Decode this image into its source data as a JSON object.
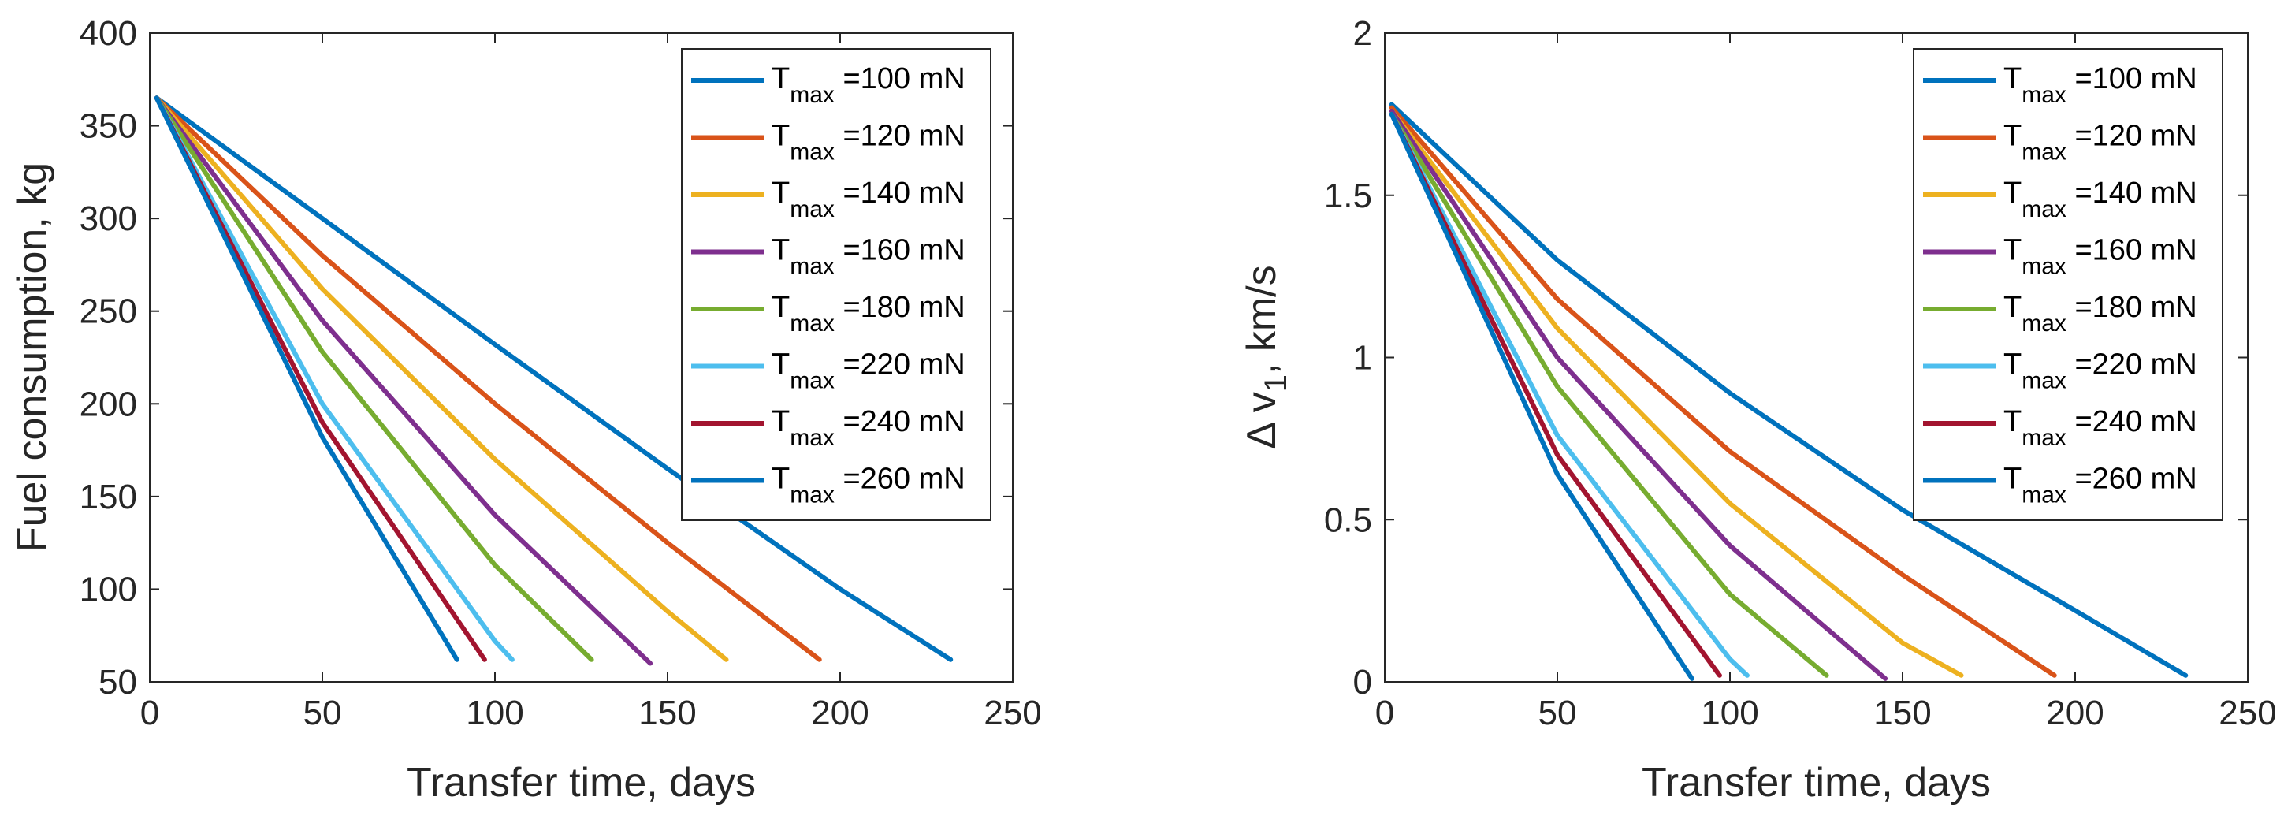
{
  "chart_data": [
    {
      "type": "line",
      "xlabel": "Transfer time, days",
      "ylabel": "Fuel consumption, kg",
      "ylabel_parts": [],
      "xlim": [
        0,
        250
      ],
      "ylim": [
        50,
        400
      ],
      "xticks": [
        0,
        50,
        100,
        150,
        200,
        250
      ],
      "yticks": [
        50,
        100,
        150,
        200,
        250,
        300,
        350,
        400
      ],
      "legend_position": "top-right",
      "grid": false,
      "series": [
        {
          "name_main": "T",
          "name_sub": "max",
          "name_rest": " =100 mN",
          "color": "#0072BD",
          "x": [
            2,
            50,
            100,
            150,
            200,
            232
          ],
          "y": [
            365,
            300,
            232,
            165,
            100,
            62
          ]
        },
        {
          "name_main": "T",
          "name_sub": "max",
          "name_rest": " =120 mN",
          "color": "#D95319",
          "x": [
            2,
            50,
            100,
            150,
            194
          ],
          "y": [
            365,
            280,
            200,
            125,
            62
          ]
        },
        {
          "name_main": "T",
          "name_sub": "max",
          "name_rest": " =140 mN",
          "color": "#EDB120",
          "x": [
            2,
            50,
            100,
            150,
            167
          ],
          "y": [
            365,
            262,
            170,
            88,
            62
          ]
        },
        {
          "name_main": "T",
          "name_sub": "max",
          "name_rest": " =160 mN",
          "color": "#7E2F8E",
          "x": [
            2,
            50,
            100,
            145
          ],
          "y": [
            365,
            245,
            140,
            60
          ]
        },
        {
          "name_main": "T",
          "name_sub": "max",
          "name_rest": " =180 mN",
          "color": "#77AC30",
          "x": [
            2,
            50,
            100,
            128
          ],
          "y": [
            365,
            228,
            113,
            62
          ]
        },
        {
          "name_main": "T",
          "name_sub": "max",
          "name_rest": " =220 mN",
          "color": "#4DBEEE",
          "x": [
            2,
            50,
            100,
            105
          ],
          "y": [
            365,
            200,
            72,
            62
          ]
        },
        {
          "name_main": "T",
          "name_sub": "max",
          "name_rest": " =240 mN",
          "color": "#A2142F",
          "x": [
            2,
            50,
            97
          ],
          "y": [
            365,
            190,
            62
          ]
        },
        {
          "name_main": "T",
          "name_sub": "max",
          "name_rest": " =260 mN",
          "color": "#0072BD",
          "x": [
            2,
            50,
            89
          ],
          "y": [
            365,
            182,
            62
          ]
        }
      ]
    },
    {
      "type": "line",
      "xlabel": "Transfer time, days",
      "ylabel": "",
      "ylabel_parts": [
        "Δ v",
        "1",
        ", km/s"
      ],
      "xlim": [
        0,
        250
      ],
      "ylim": [
        0,
        2
      ],
      "xticks": [
        0,
        50,
        100,
        150,
        200,
        250
      ],
      "yticks": [
        0,
        0.5,
        1,
        1.5,
        2
      ],
      "legend_position": "top-right",
      "grid": false,
      "series": [
        {
          "name_main": "T",
          "name_sub": "max",
          "name_rest": " =100 mN",
          "color": "#0072BD",
          "x": [
            2,
            50,
            100,
            150,
            200,
            232
          ],
          "y": [
            1.78,
            1.3,
            0.89,
            0.53,
            0.22,
            0.02
          ]
        },
        {
          "name_main": "T",
          "name_sub": "max",
          "name_rest": " =120 mN",
          "color": "#D95319",
          "x": [
            2,
            50,
            100,
            150,
            194
          ],
          "y": [
            1.77,
            1.18,
            0.71,
            0.33,
            0.02
          ]
        },
        {
          "name_main": "T",
          "name_sub": "max",
          "name_rest": " =140 mN",
          "color": "#EDB120",
          "x": [
            2,
            50,
            100,
            150,
            167
          ],
          "y": [
            1.76,
            1.09,
            0.55,
            0.12,
            0.02
          ]
        },
        {
          "name_main": "T",
          "name_sub": "max",
          "name_rest": " =160 mN",
          "color": "#7E2F8E",
          "x": [
            2,
            50,
            100,
            145
          ],
          "y": [
            1.76,
            1.0,
            0.42,
            0.01
          ]
        },
        {
          "name_main": "T",
          "name_sub": "max",
          "name_rest": " =180 mN",
          "color": "#77AC30",
          "x": [
            2,
            50,
            100,
            128
          ],
          "y": [
            1.75,
            0.91,
            0.27,
            0.02
          ]
        },
        {
          "name_main": "T",
          "name_sub": "max",
          "name_rest": " =220 mN",
          "color": "#4DBEEE",
          "x": [
            2,
            50,
            100,
            105
          ],
          "y": [
            1.75,
            0.76,
            0.07,
            0.02
          ]
        },
        {
          "name_main": "T",
          "name_sub": "max",
          "name_rest": " =240 mN",
          "color": "#A2142F",
          "x": [
            2,
            50,
            97
          ],
          "y": [
            1.75,
            0.7,
            0.02
          ]
        },
        {
          "name_main": "T",
          "name_sub": "max",
          "name_rest": " =260 mN",
          "color": "#0072BD",
          "x": [
            2,
            50,
            89
          ],
          "y": [
            1.75,
            0.64,
            0.01
          ]
        }
      ]
    }
  ]
}
